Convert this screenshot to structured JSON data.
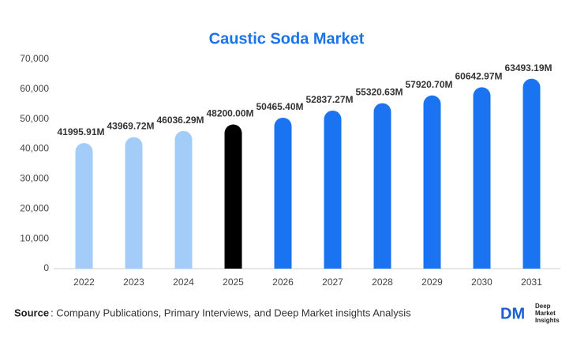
{
  "chart_data": {
    "type": "bar",
    "title": "Caustic Soda Market",
    "categories": [
      "2022",
      "2023",
      "2024",
      "2025",
      "2026",
      "2027",
      "2028",
      "2029",
      "2030",
      "2031"
    ],
    "values": [
      41995.91,
      43969.72,
      46036.29,
      48200.0,
      50465.4,
      52837.27,
      55320.63,
      57920.7,
      60642.97,
      63493.19
    ],
    "value_labels": [
      "41995.91M",
      "43969.72M",
      "46036.29M",
      "48200.00M",
      "50465.40M",
      "52837.27M",
      "55320.63M",
      "57920.70M",
      "60642.97M",
      "63493.19M"
    ],
    "colors": [
      "#a3cdf8",
      "#a3cdf8",
      "#a3cdf8",
      "#000000",
      "#1a73f0",
      "#1a73f0",
      "#1a73f0",
      "#1a73f0",
      "#1a73f0",
      "#1a73f0"
    ],
    "ylim": [
      0,
      70000
    ],
    "yticks": [
      0,
      {
        "value": 10000,
        "label": "10,000"
      },
      {
        "value": 20000,
        "label": "20,000"
      },
      {
        "value": 30000,
        "label": "30,000"
      },
      {
        "value": 40000,
        "label": "40,000"
      },
      {
        "value": 50000,
        "label": "50,000"
      },
      {
        "value": 60000,
        "label": "60,000"
      },
      {
        "value": 70000,
        "label": "70,000"
      }
    ],
    "grid": false
  },
  "footer": {
    "source_label": "Source",
    "source_text": ": Company Publications, Primary Interviews, and Deep Market insights Analysis"
  },
  "logo": {
    "mark": "DM",
    "line1": "Deep",
    "line2": "Market",
    "line3": "Insights"
  }
}
